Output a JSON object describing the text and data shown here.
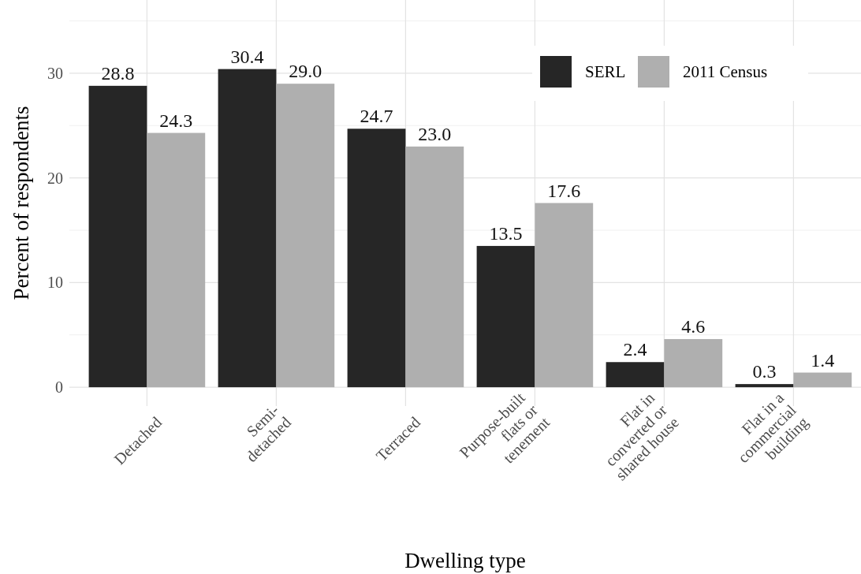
{
  "chart_data": {
    "type": "bar",
    "xlabel": "Dwelling type",
    "ylabel": "Percent of respondents",
    "categories": [
      "Detached",
      "Semi-\ndetached",
      "Terraced",
      "Purpose-built\nflats or\ntenement",
      "Flat in\nconverted or\nshared house",
      "Flat in a\ncommercial\nbuilding"
    ],
    "series": [
      {
        "name": "SERL",
        "color": "#262626",
        "values": [
          28.8,
          30.4,
          24.7,
          13.5,
          2.4,
          0.3
        ],
        "value_labels": [
          "28.8",
          "30.4",
          "24.7",
          "13.5",
          "2.4",
          "0.3"
        ]
      },
      {
        "name": "2011 Census",
        "color": "#afafaf",
        "values": [
          24.3,
          29.0,
          23.0,
          17.6,
          4.6,
          1.4
        ],
        "value_labels": [
          "24.3",
          "29.0",
          "23.0",
          "17.6",
          "4.6",
          "1.4"
        ]
      }
    ],
    "ylim": [
      -1.8,
      37
    ],
    "yticks": [
      0,
      {
        "value": 5,
        "label": null
      },
      10,
      {
        "value": 15,
        "label": null
      },
      20,
      {
        "value": 25,
        "label": null
      },
      30,
      {
        "value": 35,
        "label": null
      }
    ],
    "grid": true,
    "legend": "top right"
  }
}
